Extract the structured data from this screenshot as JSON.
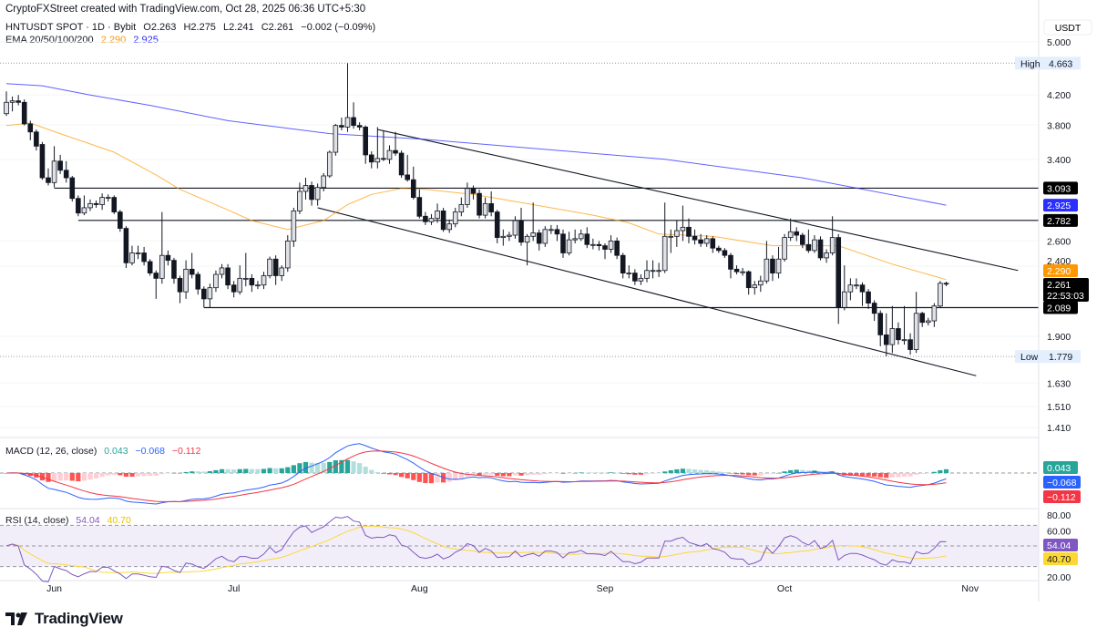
{
  "header": {
    "credit": "CryptoFXStreet created with TradingView.com, Oct 28, 2025 06:36 UTC+5:30",
    "symbol": "HNTUSDT SPOT · 1D · Bybit",
    "open": "O2.263",
    "high": "H2.275",
    "low": "L2.241",
    "close": "C2.261",
    "change": "−0.002 (−0.09%)",
    "ema_label": "EMA 20/50/100/200",
    "ema_values": [
      "2.290",
      "2.925"
    ]
  },
  "colors": {
    "ema_orange": "#ff9800",
    "ema_blue": "#2a2eff",
    "candle_up_fill": "#dfe1e6",
    "candle_down": "#131722",
    "macd_line": "#2962ff",
    "signal_line": "#f23645",
    "hist_up": "#26a69a",
    "hist_up_light": "#b2dfdb",
    "hist_down": "#ff5252",
    "hist_down_light": "#ffcdd2",
    "rsi_line": "#7e57c2",
    "rsi_ma": "#fdd835",
    "rsi_band": "#ede7f6"
  },
  "price_axis": {
    "currency": "USDT",
    "ticks": [
      "5.000",
      "4.200",
      "3.800",
      "3.400",
      "2.600",
      "2.400",
      "1.900",
      "1.630",
      "1.510",
      "1.410"
    ],
    "high_label": "High",
    "high_value": "4.663",
    "low_label": "Low",
    "low_value": "1.779",
    "levels": [
      {
        "value": "3.093",
        "start_index": 8
      },
      {
        "value": "2.782",
        "start_index": 12
      },
      {
        "value": "2.089",
        "start_index": 33
      }
    ],
    "ema200_tag": "2.925",
    "ema50_tag": "2.290",
    "last_price_tag": "2.261",
    "countdown": "22:53:03"
  },
  "macd": {
    "label": "MACD (12, 26, close)",
    "hist_value": "0.043",
    "macd_value": "−0.068",
    "signal_value": "−0.112"
  },
  "rsi": {
    "label": "RSI (14, close)",
    "rsi_value": "54.04",
    "ma_value": "40.70",
    "ticks": [
      "80.00",
      "60.00",
      "20.00"
    ]
  },
  "x_axis": {
    "ticks": [
      "Jun",
      "Jul",
      "Aug",
      "Sep",
      "Oct",
      "Nov"
    ],
    "last_date": "2025-10-28"
  },
  "brand": "TradingView",
  "chart_data": {
    "type": "candlestick",
    "title": "HNTUSDT SPOT · 1D · Bybit",
    "y_scale": "log",
    "ylim": [
      1.35,
      5.1
    ],
    "ohlc": [
      [
        3.95,
        4.25,
        3.92,
        4.1
      ],
      [
        4.1,
        4.18,
        3.98,
        4.12
      ],
      [
        4.12,
        4.2,
        4.06,
        4.1
      ],
      [
        4.1,
        4.14,
        3.8,
        3.82
      ],
      [
        3.82,
        3.86,
        3.62,
        3.72
      ],
      [
        3.72,
        3.75,
        3.5,
        3.55
      ],
      [
        3.57,
        3.6,
        3.18,
        3.2
      ],
      [
        3.2,
        3.3,
        3.12,
        3.15
      ],
      [
        3.15,
        3.55,
        3.1,
        3.38
      ],
      [
        3.38,
        3.45,
        3.24,
        3.28
      ],
      [
        3.28,
        3.38,
        3.15,
        3.2
      ],
      [
        3.2,
        3.22,
        2.96,
        2.99
      ],
      [
        2.99,
        3.02,
        2.82,
        2.85
      ],
      [
        2.85,
        3.02,
        2.83,
        2.9
      ],
      [
        2.9,
        2.98,
        2.87,
        2.94
      ],
      [
        2.94,
        2.97,
        2.9,
        2.93
      ],
      [
        2.93,
        3.04,
        2.88,
        3.0
      ],
      [
        3.0,
        3.03,
        2.96,
        3.0
      ],
      [
        3.0,
        3.02,
        2.84,
        2.86
      ],
      [
        2.86,
        2.88,
        2.68,
        2.71
      ],
      [
        2.71,
        2.73,
        2.38,
        2.42
      ],
      [
        2.42,
        2.56,
        2.4,
        2.5
      ],
      [
        2.5,
        2.56,
        2.45,
        2.5
      ],
      [
        2.5,
        2.55,
        2.4,
        2.43
      ],
      [
        2.43,
        2.45,
        2.32,
        2.34
      ],
      [
        2.34,
        2.36,
        2.15,
        2.3
      ],
      [
        2.3,
        2.86,
        2.26,
        2.48
      ],
      [
        2.48,
        2.52,
        2.4,
        2.44
      ],
      [
        2.44,
        2.46,
        2.26,
        2.3
      ],
      [
        2.3,
        2.32,
        2.12,
        2.2
      ],
      [
        2.2,
        2.44,
        2.15,
        2.37
      ],
      [
        2.37,
        2.5,
        2.3,
        2.33
      ],
      [
        2.33,
        2.35,
        2.18,
        2.22
      ],
      [
        2.22,
        2.24,
        2.09,
        2.15
      ],
      [
        2.15,
        2.26,
        2.09,
        2.23
      ],
      [
        2.23,
        2.36,
        2.2,
        2.33
      ],
      [
        2.33,
        2.41,
        2.3,
        2.38
      ],
      [
        2.38,
        2.41,
        2.22,
        2.25
      ],
      [
        2.25,
        2.28,
        2.16,
        2.2
      ],
      [
        2.2,
        2.4,
        2.18,
        2.3
      ],
      [
        2.3,
        2.5,
        2.24,
        2.3
      ],
      [
        2.3,
        2.33,
        2.2,
        2.25
      ],
      [
        2.25,
        2.28,
        2.22,
        2.25
      ],
      [
        2.25,
        2.35,
        2.22,
        2.32
      ],
      [
        2.32,
        2.47,
        2.3,
        2.45
      ],
      [
        2.45,
        2.48,
        2.25,
        2.32
      ],
      [
        2.32,
        2.4,
        2.28,
        2.38
      ],
      [
        2.38,
        2.65,
        2.35,
        2.6
      ],
      [
        2.6,
        2.9,
        2.55,
        2.87
      ],
      [
        2.87,
        3.15,
        2.84,
        3.06
      ],
      [
        3.06,
        3.2,
        2.98,
        3.12
      ],
      [
        3.12,
        3.16,
        2.92,
        2.98
      ],
      [
        2.98,
        3.14,
        2.92,
        3.1
      ],
      [
        3.1,
        3.25,
        3.06,
        3.22
      ],
      [
        3.22,
        3.5,
        3.2,
        3.48
      ],
      [
        3.48,
        3.82,
        3.44,
        3.8
      ],
      [
        3.8,
        3.9,
        3.74,
        3.78
      ],
      [
        3.78,
        4.663,
        3.72,
        3.9
      ],
      [
        3.9,
        4.1,
        3.76,
        3.8
      ],
      [
        3.8,
        3.84,
        3.74,
        3.78
      ],
      [
        3.78,
        3.8,
        3.35,
        3.45
      ],
      [
        3.45,
        3.49,
        3.3,
        3.37
      ],
      [
        3.37,
        3.78,
        3.3,
        3.41
      ],
      [
        3.41,
        3.73,
        3.38,
        3.4
      ],
      [
        3.4,
        3.56,
        3.35,
        3.5
      ],
      [
        3.5,
        3.72,
        3.44,
        3.47
      ],
      [
        3.47,
        3.5,
        3.2,
        3.23
      ],
      [
        3.23,
        3.45,
        3.16,
        3.18
      ],
      [
        3.18,
        3.32,
        2.98,
        3.0
      ],
      [
        3.0,
        3.08,
        2.8,
        2.82
      ],
      [
        2.82,
        2.86,
        2.74,
        2.77
      ],
      [
        2.77,
        2.84,
        2.74,
        2.8
      ],
      [
        2.8,
        2.94,
        2.76,
        2.87
      ],
      [
        2.87,
        2.9,
        2.68,
        2.7
      ],
      [
        2.7,
        2.79,
        2.67,
        2.75
      ],
      [
        2.75,
        2.9,
        2.72,
        2.86
      ],
      [
        2.86,
        3.0,
        2.82,
        2.93
      ],
      [
        2.93,
        3.15,
        2.9,
        3.09
      ],
      [
        3.09,
        3.12,
        2.98,
        3.04
      ],
      [
        3.04,
        3.08,
        2.8,
        2.83
      ],
      [
        2.83,
        3.0,
        2.8,
        2.94
      ],
      [
        2.94,
        3.06,
        2.82,
        2.86
      ],
      [
        2.86,
        2.88,
        2.58,
        2.63
      ],
      [
        2.63,
        2.7,
        2.56,
        2.64
      ],
      [
        2.64,
        2.68,
        2.6,
        2.65
      ],
      [
        2.65,
        2.82,
        2.62,
        2.78
      ],
      [
        2.78,
        2.9,
        2.56,
        2.59
      ],
      [
        2.59,
        2.66,
        2.4,
        2.64
      ],
      [
        2.64,
        2.95,
        2.6,
        2.67
      ],
      [
        2.67,
        2.7,
        2.52,
        2.58
      ],
      [
        2.58,
        2.73,
        2.55,
        2.7
      ],
      [
        2.7,
        2.74,
        2.66,
        2.7
      ],
      [
        2.7,
        2.74,
        2.6,
        2.66
      ],
      [
        2.66,
        2.7,
        2.46,
        2.5
      ],
      [
        2.5,
        2.68,
        2.48,
        2.61
      ],
      [
        2.61,
        2.7,
        2.58,
        2.62
      ],
      [
        2.62,
        2.7,
        2.6,
        2.66
      ],
      [
        2.66,
        2.72,
        2.54,
        2.57
      ],
      [
        2.57,
        2.62,
        2.53,
        2.57
      ],
      [
        2.57,
        2.6,
        2.52,
        2.56
      ],
      [
        2.56,
        2.58,
        2.45,
        2.53
      ],
      [
        2.53,
        2.65,
        2.5,
        2.6
      ],
      [
        2.6,
        2.63,
        2.45,
        2.48
      ],
      [
        2.48,
        2.5,
        2.3,
        2.34
      ],
      [
        2.34,
        2.4,
        2.3,
        2.34
      ],
      [
        2.34,
        2.37,
        2.25,
        2.28
      ],
      [
        2.28,
        2.33,
        2.25,
        2.3
      ],
      [
        2.3,
        2.44,
        2.27,
        2.36
      ],
      [
        2.36,
        2.44,
        2.3,
        2.36
      ],
      [
        2.36,
        2.42,
        2.31,
        2.36
      ],
      [
        2.36,
        2.95,
        2.34,
        2.64
      ],
      [
        2.64,
        2.7,
        2.5,
        2.64
      ],
      [
        2.64,
        2.78,
        2.55,
        2.69
      ],
      [
        2.69,
        2.92,
        2.6,
        2.72
      ],
      [
        2.72,
        2.8,
        2.58,
        2.64
      ],
      [
        2.64,
        2.7,
        2.57,
        2.61
      ],
      [
        2.61,
        2.66,
        2.55,
        2.58
      ],
      [
        2.58,
        2.65,
        2.55,
        2.62
      ],
      [
        2.62,
        2.64,
        2.5,
        2.54
      ],
      [
        2.54,
        2.56,
        2.5,
        2.52
      ],
      [
        2.52,
        2.54,
        2.46,
        2.48
      ],
      [
        2.48,
        2.5,
        2.3,
        2.37
      ],
      [
        2.37,
        2.4,
        2.33,
        2.35
      ],
      [
        2.35,
        2.38,
        2.32,
        2.35
      ],
      [
        2.35,
        2.36,
        2.18,
        2.23
      ],
      [
        2.23,
        2.28,
        2.18,
        2.25
      ],
      [
        2.25,
        2.32,
        2.2,
        2.28
      ],
      [
        2.28,
        2.6,
        2.26,
        2.45
      ],
      [
        2.45,
        2.48,
        2.28,
        2.34
      ],
      [
        2.34,
        2.55,
        2.3,
        2.45
      ],
      [
        2.45,
        2.66,
        2.43,
        2.63
      ],
      [
        2.63,
        2.8,
        2.6,
        2.68
      ],
      [
        2.68,
        2.72,
        2.6,
        2.65
      ],
      [
        2.65,
        2.67,
        2.54,
        2.57
      ],
      [
        2.57,
        2.7,
        2.5,
        2.52
      ],
      [
        2.52,
        2.65,
        2.5,
        2.61
      ],
      [
        2.61,
        2.64,
        2.44,
        2.46
      ],
      [
        2.46,
        2.53,
        2.42,
        2.5
      ],
      [
        2.5,
        2.82,
        2.48,
        2.63
      ],
      [
        2.63,
        2.66,
        1.98,
        2.09
      ],
      [
        2.09,
        2.4,
        2.07,
        2.2
      ],
      [
        2.2,
        2.3,
        2.14,
        2.25
      ],
      [
        2.25,
        2.3,
        2.22,
        2.25
      ],
      [
        2.25,
        2.27,
        2.1,
        2.2
      ],
      [
        2.2,
        2.22,
        2.08,
        2.12
      ],
      [
        2.12,
        2.14,
        2.0,
        2.05
      ],
      [
        2.05,
        2.07,
        1.84,
        1.91
      ],
      [
        1.91,
        2.05,
        1.78,
        1.85
      ],
      [
        1.85,
        2.1,
        1.8,
        1.95
      ],
      [
        1.95,
        1.99,
        1.85,
        1.88
      ],
      [
        1.88,
        2.1,
        1.85,
        1.88
      ],
      [
        1.88,
        1.92,
        1.79,
        1.82
      ],
      [
        1.82,
        2.2,
        1.8,
        2.05
      ],
      [
        2.05,
        2.06,
        1.96,
        1.99
      ],
      [
        1.99,
        2.02,
        1.97,
        2.0
      ],
      [
        2.0,
        2.12,
        1.96,
        2.1
      ],
      [
        2.1,
        2.28,
        2.09,
        2.263
      ],
      [
        2.263,
        2.275,
        2.241,
        2.261
      ]
    ],
    "ema50": [
      [
        0,
        3.8
      ],
      [
        4,
        3.83
      ],
      [
        9,
        3.7
      ],
      [
        18,
        3.48
      ],
      [
        25,
        3.23
      ],
      [
        29,
        3.08
      ],
      [
        37,
        2.88
      ],
      [
        41,
        2.78
      ],
      [
        47,
        2.7
      ],
      [
        50,
        2.74
      ],
      [
        53,
        2.78
      ],
      [
        57,
        2.93
      ],
      [
        61,
        3.03
      ],
      [
        66,
        3.09
      ],
      [
        70,
        3.08
      ],
      [
        78,
        3.03
      ],
      [
        88,
        2.93
      ],
      [
        98,
        2.83
      ],
      [
        104,
        2.76
      ],
      [
        109,
        2.66
      ],
      [
        118,
        2.64
      ],
      [
        128,
        2.56
      ],
      [
        139,
        2.56
      ],
      [
        148,
        2.41
      ],
      [
        157,
        2.29
      ]
    ],
    "ema200": [
      [
        0,
        4.36
      ],
      [
        6,
        4.33
      ],
      [
        14,
        4.2
      ],
      [
        24,
        4.06
      ],
      [
        37,
        3.86
      ],
      [
        54,
        3.7
      ],
      [
        70,
        3.63
      ],
      [
        87,
        3.53
      ],
      [
        110,
        3.4
      ],
      [
        133,
        3.2
      ],
      [
        157,
        2.925
      ]
    ],
    "trendlines": [
      {
        "from": [
          62,
          3.75
        ],
        "to": [
          169,
          2.36
        ]
      },
      {
        "from": [
          52,
          2.9
        ],
        "to": [
          162,
          1.67
        ]
      }
    ]
  }
}
